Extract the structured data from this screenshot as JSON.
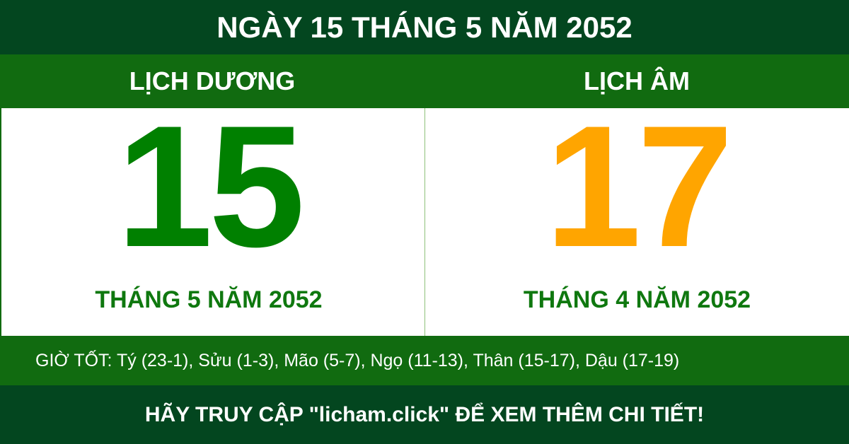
{
  "title": "NGÀY 15 THÁNG 5 NĂM 2052",
  "solar": {
    "label": "LỊCH DƯƠNG",
    "day": "15",
    "month_year": "THÁNG 5 NĂM 2052",
    "color": "#008000"
  },
  "lunar": {
    "label": "LỊCH ÂM",
    "day": "17",
    "month_year": "THÁNG 4 NĂM 2052",
    "color": "#ffa500"
  },
  "good_hours": "GIỜ TỐT: Tý (23-1), Sửu (1-3), Mão (5-7), Ngọ (11-13), Thân (15-17), Dậu (17-19)",
  "footer": "HÃY TRUY CẬP \"licham.click\" ĐỂ XEM THÊM CHI TIẾT!"
}
